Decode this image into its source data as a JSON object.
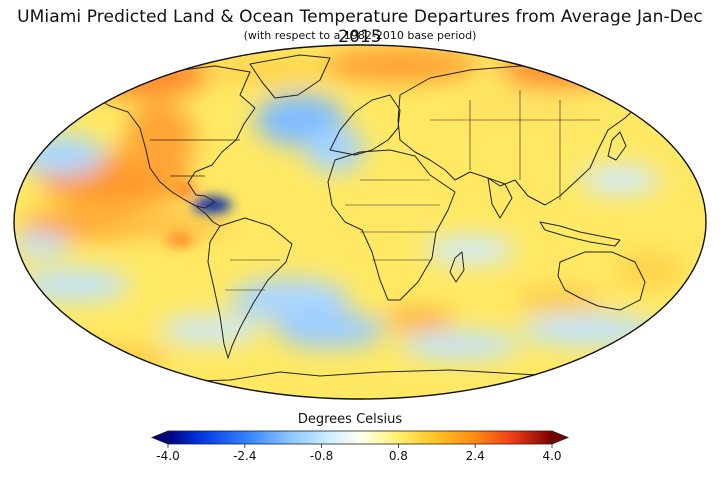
{
  "title": "UMiami Predicted Land & Ocean Temperature Departures from Average Jan-Dec 2015",
  "subtitle": "(with respect to a 1982-2010 base period)",
  "colorbar": {
    "title": "Degrees Celsius",
    "min": -4.0,
    "max": 4.0,
    "ticks": [
      "-4.0",
      "-2.4",
      "-0.8",
      "0.8",
      "2.4",
      "4.0"
    ],
    "tick_values": [
      -4.0,
      -2.4,
      -0.8,
      0.8,
      2.4,
      4.0
    ],
    "colors": [
      "#000080",
      "#0033dd",
      "#2f7fff",
      "#9dd2ff",
      "#cfeeff",
      "#fffff0",
      "#fff06e",
      "#ffc21f",
      "#ff8a12",
      "#ef3a16",
      "#b80c0c",
      "#7a0000"
    ]
  },
  "map": {
    "projection": "Robinson",
    "ocean_base_color": "#ffe75a",
    "outline_color": "#222222"
  }
}
